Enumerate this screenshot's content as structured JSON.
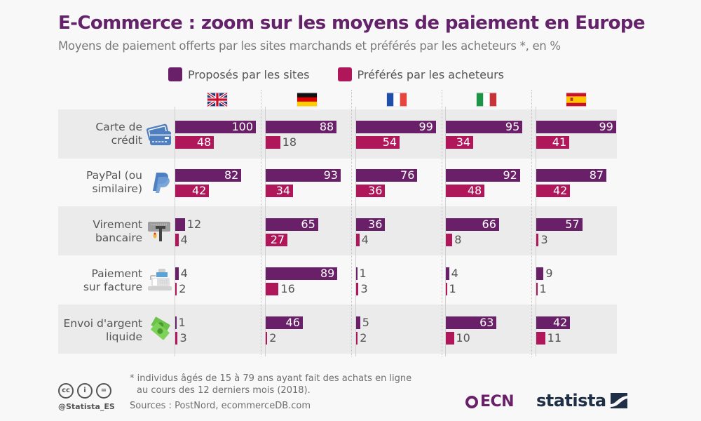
{
  "header": {
    "title": "E-Commerce : zoom sur les moyens de paiement en Europe",
    "subtitle": "Moyens de paiement offerts par les sites marchands et préférés par les acheteurs *, en %"
  },
  "colors": {
    "proposes": "#6a2068",
    "preferes": "#b0175a",
    "title": "#64226a"
  },
  "chart_data": {
    "type": "bar",
    "orientation": "horizontal",
    "title": "E-Commerce : zoom sur les moyens de paiement en Europe",
    "subtitle": "Moyens de paiement offerts par les sites marchands et préférés par les acheteurs *, en %",
    "xlim": [
      0,
      100
    ],
    "legend_position": "top",
    "legend": [
      "Proposés par les sites",
      "Préférés par les acheteurs"
    ],
    "countries": [
      "Royaume-Uni",
      "Allemagne",
      "France",
      "Italie",
      "Espagne"
    ],
    "categories": [
      "Carte de crédit",
      "PayPal (ou similaire)",
      "Virement bancaire",
      "Paiement sur facture",
      "Envoi d'argent liquide"
    ],
    "category_lines": [
      [
        "Carte de",
        "crédit"
      ],
      [
        "PayPal (ou",
        "similaire)"
      ],
      [
        "Virement",
        "bancaire"
      ],
      [
        "Paiement",
        "sur facture"
      ],
      [
        "Envoi d'argent",
        "liquide"
      ]
    ],
    "category_icons": [
      "credit-card-icon",
      "paypal-icon",
      "bank-transfer-icon",
      "cash-register-icon",
      "cash-money-icon"
    ],
    "series": [
      {
        "name": "Proposés par les sites",
        "values": [
          [
            100,
            88,
            99,
            95,
            99
          ],
          [
            82,
            93,
            76,
            92,
            87
          ],
          [
            12,
            65,
            36,
            66,
            57
          ],
          [
            4,
            89,
            1,
            4,
            9
          ],
          [
            1,
            46,
            5,
            63,
            42
          ]
        ]
      },
      {
        "name": "Préférés par les acheteurs",
        "values": [
          [
            48,
            18,
            54,
            34,
            41
          ],
          [
            42,
            34,
            36,
            48,
            42
          ],
          [
            4,
            27,
            4,
            8,
            3
          ],
          [
            2,
            16,
            3,
            1,
            1
          ],
          [
            3,
            2,
            2,
            10,
            11
          ]
        ]
      }
    ]
  },
  "footer": {
    "note_line1": "* individus âgés de 15 à 79 ans ayant fait des achats en ligne",
    "note_line2": "au cours des 12 derniers mois (2018).",
    "sources": "Sources : PostNord, ecommerceDB.com",
    "handle": "@Statista_ES",
    "cc_labels": [
      "cc",
      "i",
      "="
    ],
    "ecn_logo": "ECN",
    "statista_logo": "statista"
  }
}
